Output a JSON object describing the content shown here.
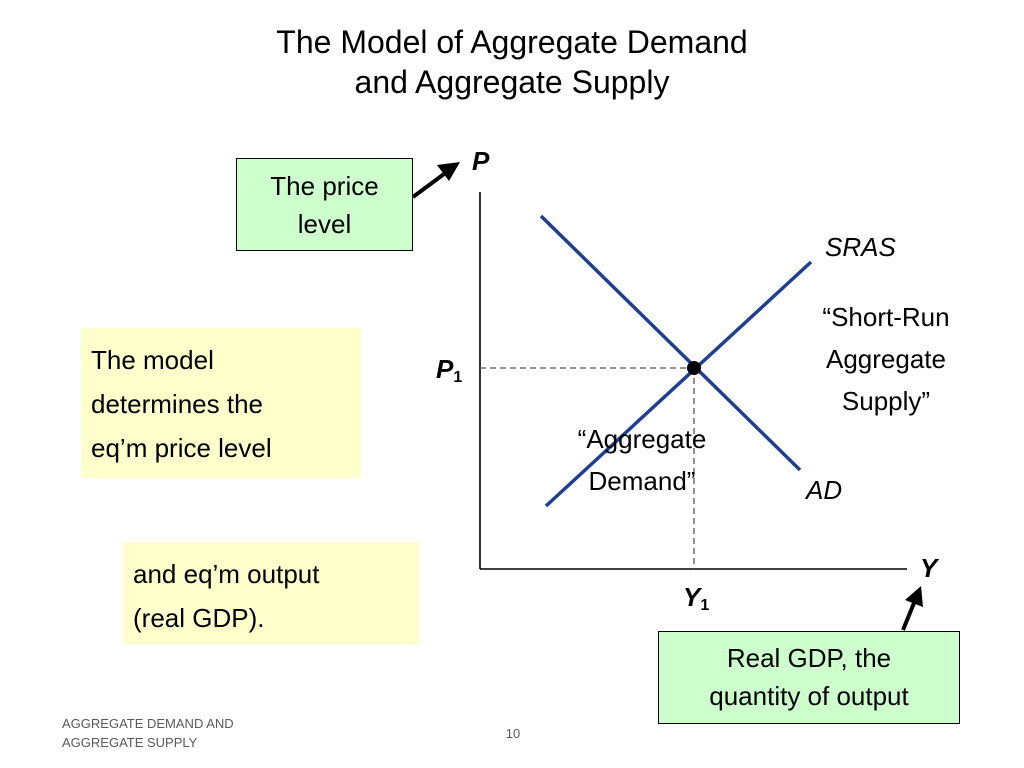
{
  "title": {
    "line1": "The Model of Aggregate Demand",
    "line2": "and Aggregate Supply"
  },
  "diagram": {
    "y_axis_label": "P",
    "x_axis_label": "Y",
    "price_marker": {
      "base": "P",
      "sub": "1"
    },
    "output_marker": {
      "base": "Y",
      "sub": "1"
    },
    "curves": {
      "sras_label": "SRAS",
      "ad_label": "AD",
      "sras_quote": [
        "“Short-Run",
        "Aggregate",
        "Supply”"
      ],
      "ad_quote": [
        "“Aggregate",
        "Demand”"
      ]
    },
    "colors": {
      "curve": "#1f3f94",
      "axis": "#000000",
      "guide": "#555555"
    }
  },
  "callouts": {
    "price_level": [
      "The price",
      "level"
    ],
    "model_determines": [
      "The model",
      "determines the",
      "eq’m price level"
    ],
    "output": [
      "and eq’m output",
      "(real GDP)."
    ],
    "real_gdp": [
      "Real GDP, the",
      "quantity of output"
    ],
    "box_colors": {
      "green": "#ccffcc",
      "yellow": "#ffffcc"
    }
  },
  "footer": {
    "left_line1": "AGGREGATE DEMAND AND",
    "left_line2": "AGGREGATE SUPPLY",
    "page_number": "10"
  }
}
